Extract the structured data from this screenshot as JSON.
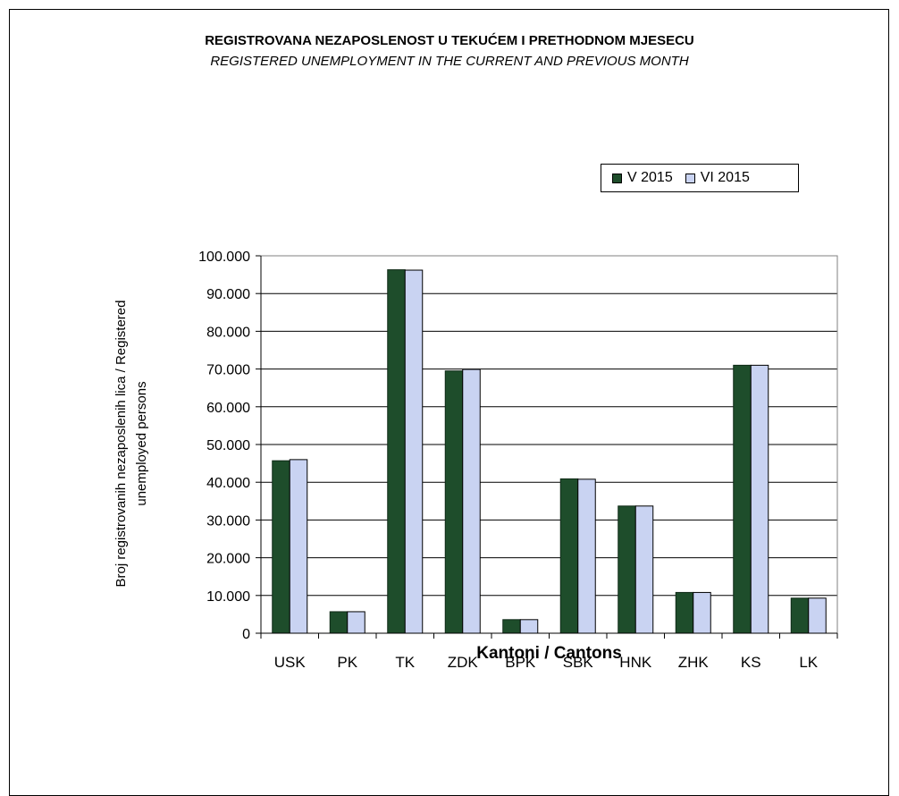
{
  "chart_data": {
    "type": "bar",
    "title": "REGISTROVANA NEZAPOSLENOST U TEKUĆEM I PRETHODNOM    MJESECU",
    "subtitle": "REGISTERED UNEMPLOYMENT IN THE CURRENT AND PREVIOUS MONTH",
    "xlabel": "Kantoni / Cantons",
    "ylabel_line1": "Broj registrovanih nezaposlenih lica / Registered",
    "ylabel_line2": "unemployed persons",
    "categories": [
      "USK",
      "PK",
      "TK",
      "ZDK",
      "BPK",
      "SBK",
      "HNK",
      "ZHK",
      "KS",
      "LK"
    ],
    "series": [
      {
        "name": "V 2015",
        "color": "#1e4d2b",
        "values": [
          45700,
          5700,
          96300,
          69500,
          3600,
          40900,
          33700,
          10800,
          71000,
          9300
        ]
      },
      {
        "name": "VI 2015",
        "color": "#c9d3f2",
        "values": [
          46000,
          5700,
          96200,
          69900,
          3600,
          40800,
          33700,
          10800,
          71000,
          9300
        ]
      }
    ],
    "ylim": [
      0,
      100000
    ],
    "yticks": [
      0,
      10000,
      20000,
      30000,
      40000,
      50000,
      60000,
      70000,
      80000,
      90000,
      100000
    ],
    "ytick_labels": [
      "0",
      "10.000",
      "20.000",
      "30.000",
      "40.000",
      "50.000",
      "60.000",
      "70.000",
      "80.000",
      "90.000",
      "100.000"
    ],
    "grid": true,
    "legend_position": "top-right"
  }
}
